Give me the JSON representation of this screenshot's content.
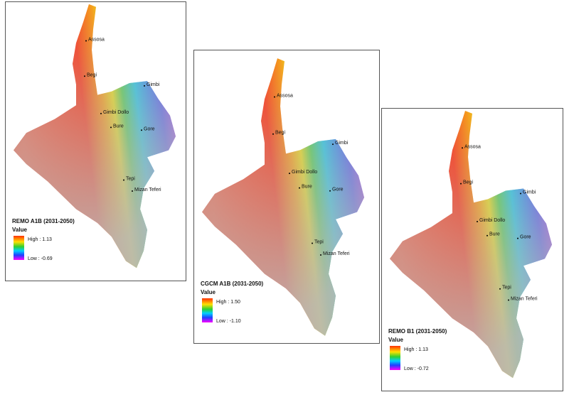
{
  "panels": [
    {
      "title": "REMO A1B (2031-2050)",
      "legend_title": "Value",
      "high": "High : 1.13",
      "low": "Low : -0.69",
      "places": [
        "Assosa",
        "Begi",
        "Gimbi",
        "Gimbi Dollo",
        "Bure",
        "Gore",
        "Tepi",
        "Mizan Teferi"
      ]
    },
    {
      "title": "CGCM A1B (2031-2050)",
      "legend_title": "Value",
      "high": "High : 1.50",
      "low": "Low : -1.10",
      "places": [
        "Assosa",
        "Begi",
        "Gimbi",
        "Gimbi Dollo",
        "Bure",
        "Gore",
        "Tepi",
        "Mizan Teferi"
      ]
    },
    {
      "title": "REMO B1 (2031-2050)",
      "legend_title": "Value",
      "high": "High : 1.13",
      "low": "Low : -0.72",
      "places": [
        "Assosa",
        "Begi",
        "Gimbi",
        "Gimbi Dollo",
        "Bure",
        "Gore",
        "Tepi",
        "Mizan Teferi"
      ]
    }
  ]
}
